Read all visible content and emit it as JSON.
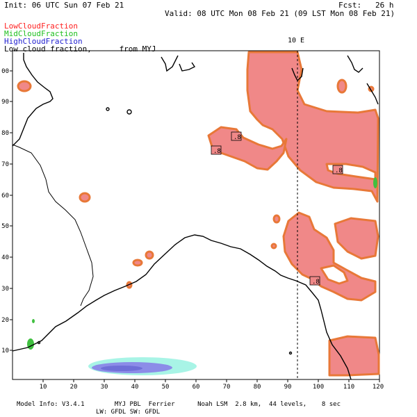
{
  "header": {
    "init": "Init: 06 UTC Sun 07 Feb 21",
    "fcst": "Fcst:   26 h",
    "valid": "Valid: 08 UTC Mon 08 Feb 21 (09 LST Mon 08 Feb 21)"
  },
  "legend": {
    "low": "LowCloudFraction",
    "mid": "MidCloudFraction",
    "high": "HighCloudFraction",
    "title": "Low cloud fraction,      from MYJ",
    "colors": {
      "low": "#ff2020",
      "mid": "#20c020",
      "high": "#2020d0"
    }
  },
  "map": {
    "meridian_label": "10 E",
    "contour_labels": [
      ".8",
      ".8",
      ".8",
      ".8"
    ],
    "fill_colors": {
      "low": "#f08080",
      "low_edge": "#e87838",
      "high_outer": "#a0f0e0",
      "high_inner": "#8080e0",
      "mid": "#40c040"
    },
    "x_ticks": [
      "10",
      "20",
      "30",
      "40",
      "50",
      "60",
      "70",
      "80",
      "90",
      "100",
      "110",
      "120"
    ],
    "y_ticks": [
      "10",
      "20",
      "30",
      "40",
      "50",
      "60",
      "70",
      "80",
      "90",
      "00"
    ]
  },
  "footer": {
    "line1": "Model Info: V3.4.1        MYJ PBL  Ferrier      Noah LSM  2.8 km,  44 levels,    8 sec",
    "line2": "LW: GFDL SW: GFDL"
  }
}
